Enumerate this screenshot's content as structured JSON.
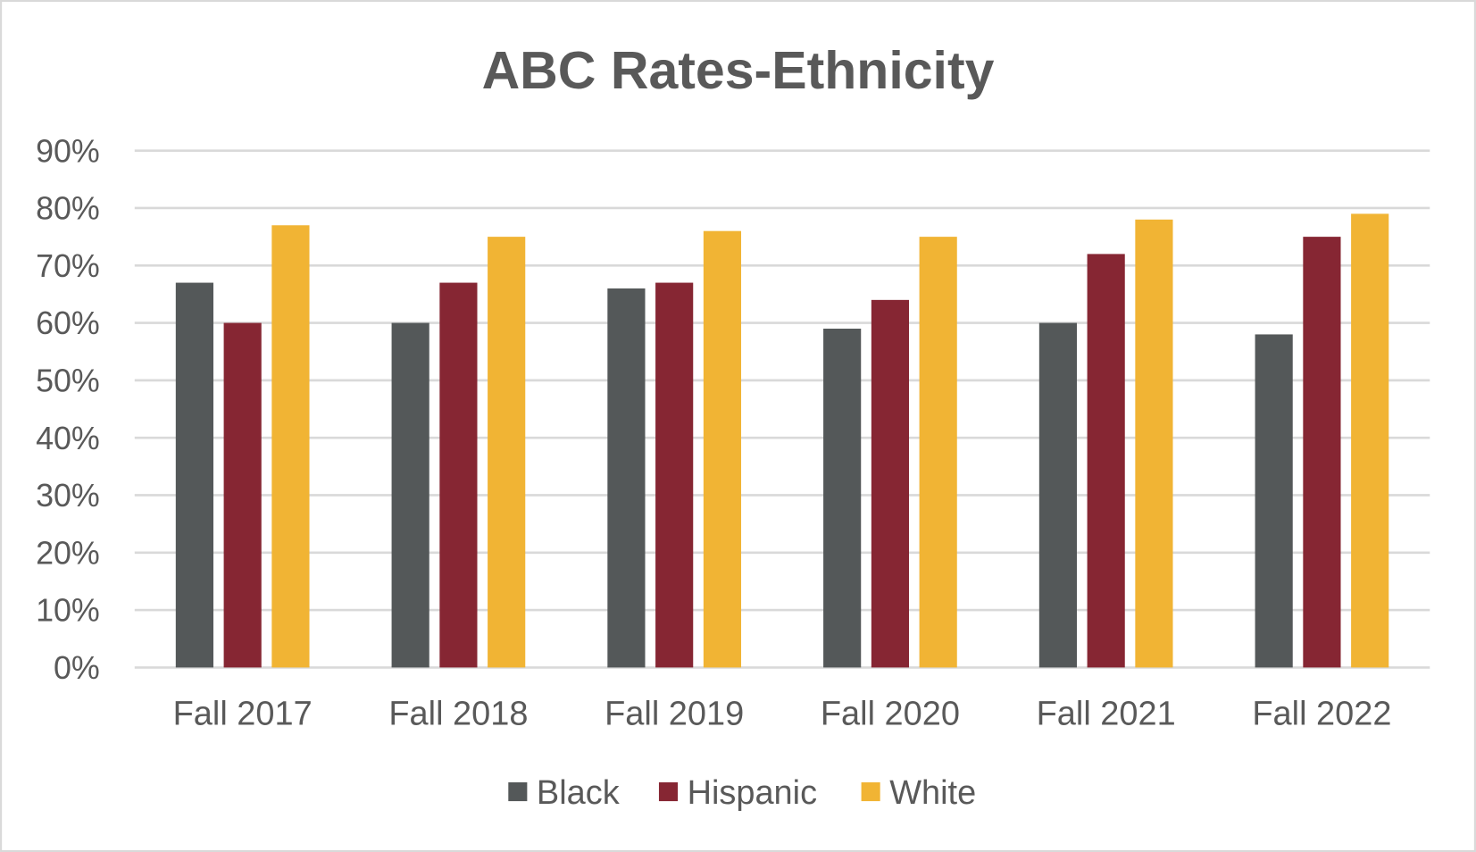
{
  "chart_data": {
    "type": "bar",
    "title": "ABC Rates-Ethnicity",
    "xlabel": "",
    "ylabel": "",
    "categories": [
      "Fall 2017",
      "Fall 2018",
      "Fall 2019",
      "Fall 2020",
      "Fall 2021",
      "Fall 2022"
    ],
    "series": [
      {
        "name": "Black",
        "color": "#545859",
        "values": [
          67,
          60,
          66,
          59,
          60,
          58
        ]
      },
      {
        "name": "Hispanic",
        "color": "#862633",
        "values": [
          60,
          67,
          67,
          64,
          72,
          75
        ]
      },
      {
        "name": "White",
        "color": "#F1B434",
        "values": [
          77,
          75,
          76,
          75,
          78,
          79
        ]
      }
    ],
    "ylim": [
      0,
      90
    ],
    "yticks": [
      "0%",
      "10%",
      "20%",
      "30%",
      "40%",
      "50%",
      "60%",
      "70%",
      "80%",
      "90%"
    ],
    "grid": true,
    "legend": "bottom"
  }
}
